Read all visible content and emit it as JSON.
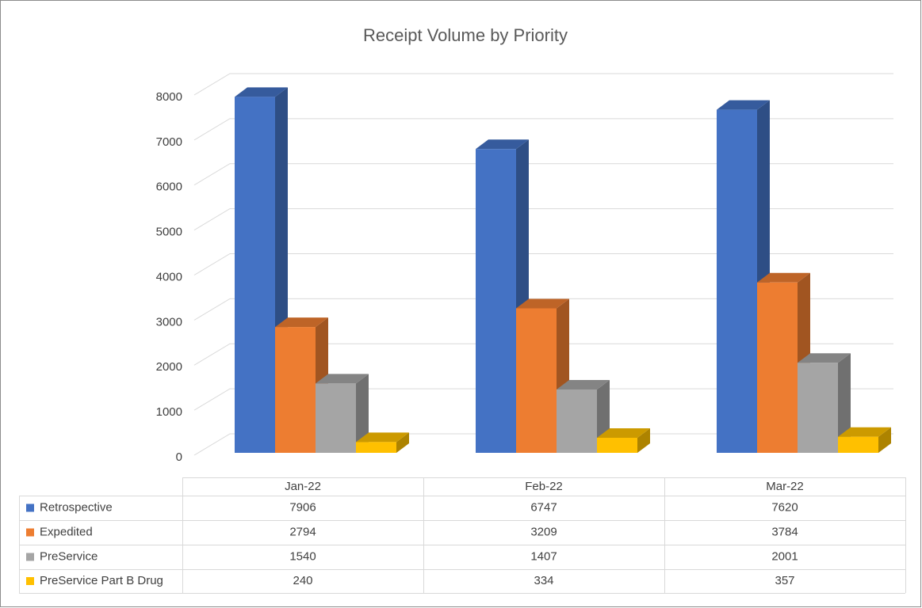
{
  "chart_data": {
    "type": "bar3d",
    "title": "Receipt Volume by Priority",
    "categories": [
      "Jan-22",
      "Feb-22",
      "Mar-22"
    ],
    "series": [
      {
        "name": "Retrospective",
        "color": "#4472c4",
        "values": [
          7906,
          6747,
          7620
        ]
      },
      {
        "name": "Expedited",
        "color": "#ed7d31",
        "values": [
          2794,
          3209,
          3784
        ]
      },
      {
        "name": "PreService",
        "color": "#a5a5a5",
        "values": [
          1540,
          1407,
          2001
        ]
      },
      {
        "name": "PreService Part B Drug",
        "color": "#ffc000",
        "values": [
          240,
          334,
          357
        ]
      }
    ],
    "ylim": [
      0,
      8000
    ],
    "yticks": [
      0,
      1000,
      2000,
      3000,
      4000,
      5000,
      6000,
      7000,
      8000
    ],
    "grid": true,
    "data_table": true
  }
}
